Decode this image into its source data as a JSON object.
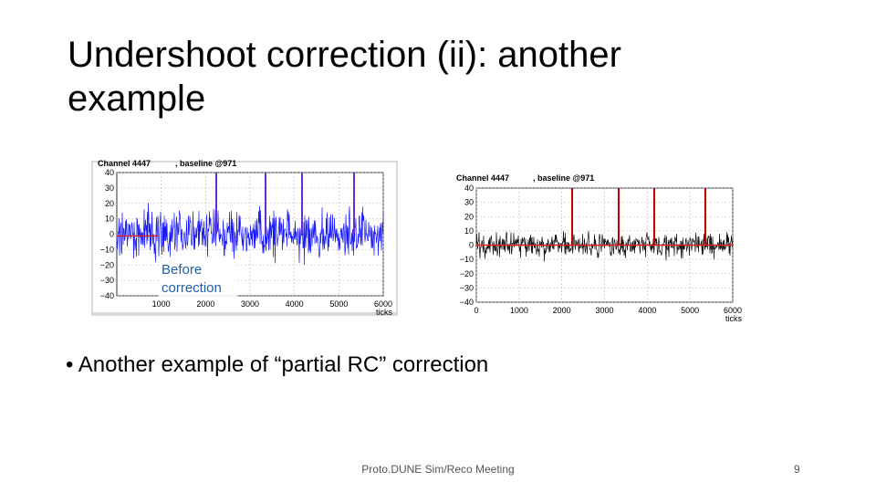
{
  "slide": {
    "title": "Undershoot correction (ii): another example",
    "plots": [
      {
        "channel": "Channel 4447",
        "baseline": ", baseline @971",
        "yticks": [
          "40",
          "30",
          "20",
          "10",
          "0",
          "−10",
          "−20",
          "−30",
          "−40"
        ],
        "xticks": [
          "1000",
          "2000",
          "3000",
          "4000",
          "5000",
          "6000"
        ],
        "xlabel": "ticks",
        "annotation": "Before correction"
      },
      {
        "channel": "Channel 4447",
        "baseline": ", baseline @971",
        "yticks": [
          "40",
          "30",
          "20",
          "10",
          "0",
          "−10",
          "−20",
          "−30",
          "−40"
        ],
        "xticks": [
          "0",
          "1000",
          "2000",
          "3000",
          "4000",
          "5000",
          "6000"
        ],
        "xlabel": "ticks"
      }
    ],
    "bullet": "Another example of “partial RC” correction",
    "footer": "Proto.DUNE Sim/Reco Meeting",
    "page_number": "9"
  }
}
